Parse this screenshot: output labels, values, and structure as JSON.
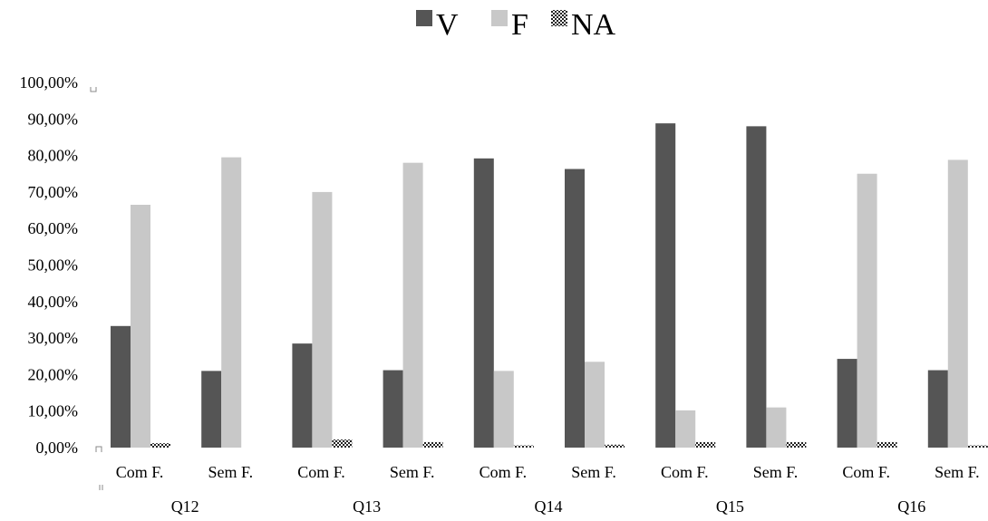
{
  "chart_data": {
    "type": "bar",
    "groups": [
      "Q12",
      "Q13",
      "Q14",
      "Q15",
      "Q16"
    ],
    "categories": [
      "Com F.",
      "Sem F.",
      "Com F.",
      "Sem F.",
      "Com F.",
      "Sem F.",
      "Com F.",
      "Sem F.",
      "Com F.",
      "Sem F."
    ],
    "series": [
      {
        "name": "V",
        "color": "#555555",
        "values": [
          33.3,
          21.0,
          28.5,
          21.2,
          79.2,
          76.3,
          88.8,
          88.0,
          24.3,
          21.2
        ]
      },
      {
        "name": "F",
        "color": "#c8c8c8",
        "values": [
          66.5,
          79.5,
          70.0,
          78.0,
          21.0,
          23.5,
          10.2,
          11.0,
          75.0,
          78.8
        ]
      },
      {
        "name": "NA",
        "color": "#222222",
        "pattern": "checkered",
        "values": [
          1.2,
          0.0,
          2.2,
          1.5,
          0.6,
          0.8,
          1.5,
          1.5,
          1.5,
          0.6
        ]
      }
    ],
    "yticks": [
      "0,00%",
      "10,00%",
      "20,00%",
      "30,00%",
      "40,00%",
      "50,00%",
      "60,00%",
      "70,00%",
      "80,00%",
      "90,00%",
      "100,00%"
    ],
    "ylim": [
      0,
      100
    ],
    "grid": false,
    "legend_position": "top-center",
    "title": "",
    "xlabel": "",
    "ylabel": ""
  }
}
